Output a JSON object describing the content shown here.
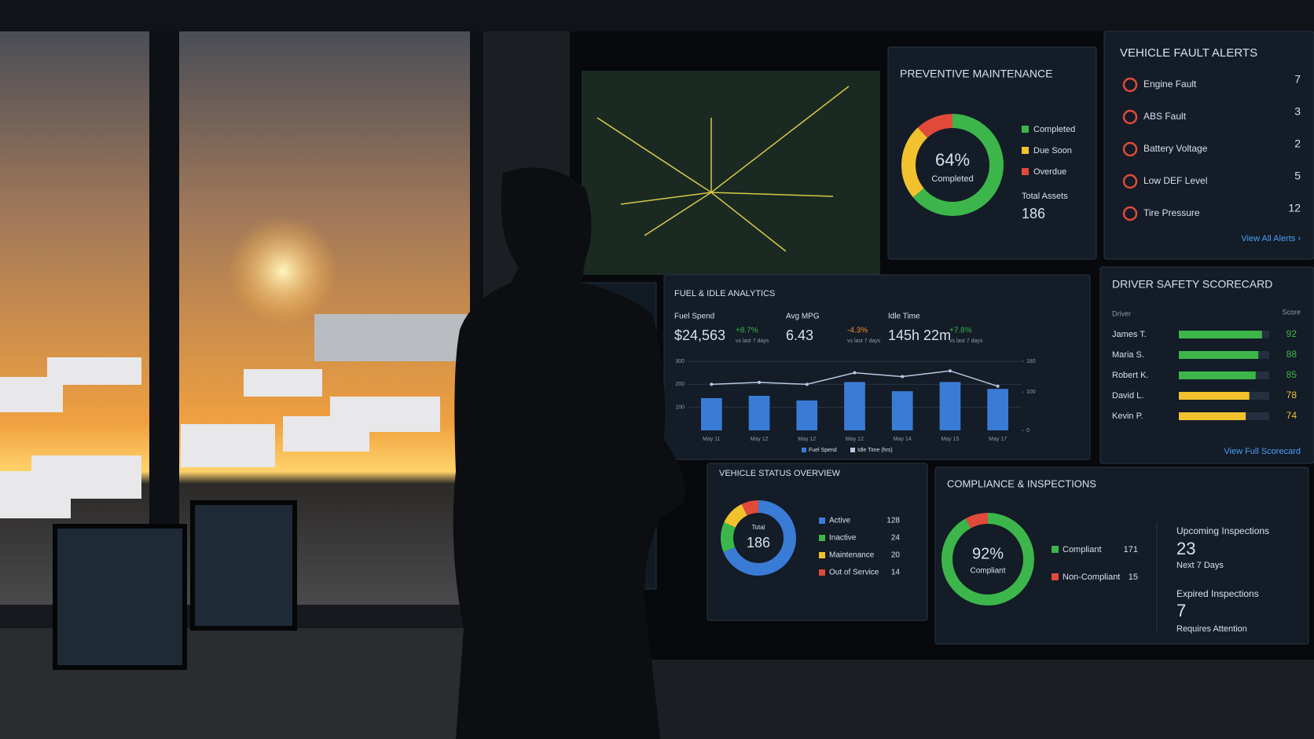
{
  "preventive_maintenance": {
    "title": "PREVENTIVE MAINTENANCE",
    "center_value_label": "64%",
    "center_caption": "Completed",
    "segments": [
      {
        "name": "Completed",
        "color": "#3cb64a",
        "value": 64
      },
      {
        "name": "Due Soon",
        "color": "#f2c12e",
        "value": 24
      },
      {
        "name": "Overdue",
        "color": "#e04a3a",
        "value": 12
      }
    ],
    "total_label": "Total Assets",
    "total": 186
  },
  "fault_alerts": {
    "title": "VEHICLE FAULT ALERTS",
    "items": [
      {
        "name": "Engine Fault",
        "count": 7
      },
      {
        "name": "ABS Fault",
        "count": 3
      },
      {
        "name": "Battery Voltage",
        "count": 2
      },
      {
        "name": "Low DEF Level",
        "count": 5
      },
      {
        "name": "Tire Pressure",
        "count": 12
      }
    ],
    "link": "View All Alerts ›"
  },
  "fuel_idle": {
    "title": "FUEL & IDLE ANALYTICS",
    "kpis": [
      {
        "label": "Fuel Spend",
        "value": "$24,563",
        "change": "+8.7%",
        "change_color": "#3cb64a",
        "note": "vs last 7 days"
      },
      {
        "label": "Avg MPG",
        "value": "6.43",
        "change": "-4.3%",
        "change_color": "#f08a2e",
        "note": "vs last 7 days"
      },
      {
        "label": "Idle Time",
        "value": "145h 22m",
        "change": "+7.8%",
        "change_color": "#3cb64a",
        "note": "vs last 7 days"
      }
    ],
    "chart": {
      "type": "bar",
      "categories": [
        "May 11",
        "May 12",
        "May 12",
        "May 12",
        "May 14",
        "May 15",
        "May 17"
      ],
      "series": [
        {
          "name": "Fuel Spend",
          "color": "#3a7bd5",
          "values": [
            140,
            150,
            130,
            210,
            170,
            210,
            180
          ]
        },
        {
          "name": "Idle Time (hrs)",
          "color": "#b8c8e0",
          "axis": "y2",
          "values": [
            120,
            125,
            120,
            150,
            140,
            155,
            115
          ]
        }
      ],
      "ylim": [
        0,
        300
      ],
      "yticks": [
        100,
        200,
        300
      ],
      "y2lim": [
        0,
        180
      ],
      "y2ticks": [
        0,
        100,
        180
      ],
      "grid": true
    }
  },
  "driver_safety": {
    "title": "DRIVER SAFETY SCORECARD",
    "col_driver": "Driver",
    "col_score": "Score",
    "rows": [
      {
        "name": "James T.",
        "score": 92,
        "color": "#3cb64a"
      },
      {
        "name": "Maria S.",
        "score": 88,
        "color": "#3cb64a"
      },
      {
        "name": "Robert K.",
        "score": 85,
        "color": "#3cb64a"
      },
      {
        "name": "David L.",
        "score": 78,
        "color": "#f2c12e"
      },
      {
        "name": "Kevin P.",
        "score": 74,
        "color": "#f2c12e"
      }
    ],
    "score_max": 100,
    "link": "View Full Scorecard"
  },
  "vehicle_status": {
    "title": "VEHICLE STATUS OVERVIEW",
    "center_caption": "Total",
    "total": 186,
    "items": [
      {
        "name": "Active",
        "color": "#3a7bd5",
        "count": 128
      },
      {
        "name": "Inactive",
        "color": "#3cb64a",
        "count": 24
      },
      {
        "name": "Maintenance",
        "color": "#f2c12e",
        "count": 20
      },
      {
        "name": "Out of Service",
        "color": "#e04a3a",
        "count": 14
      }
    ]
  },
  "compliance": {
    "title": "COMPLIANCE & INSPECTIONS",
    "center_value_label": "92%",
    "center_caption": "Compliant",
    "items": [
      {
        "name": "Compliant",
        "color": "#3cb64a",
        "count": 171
      },
      {
        "name": "Non-Compliant",
        "color": "#e04a3a",
        "count": 15
      }
    ],
    "upcoming_label": "Upcoming Inspections",
    "upcoming": 23,
    "upcoming_note": "Next 7 Days",
    "expired_label": "Expired Inspections",
    "expired": 7,
    "expired_note": "Requires Attention"
  }
}
